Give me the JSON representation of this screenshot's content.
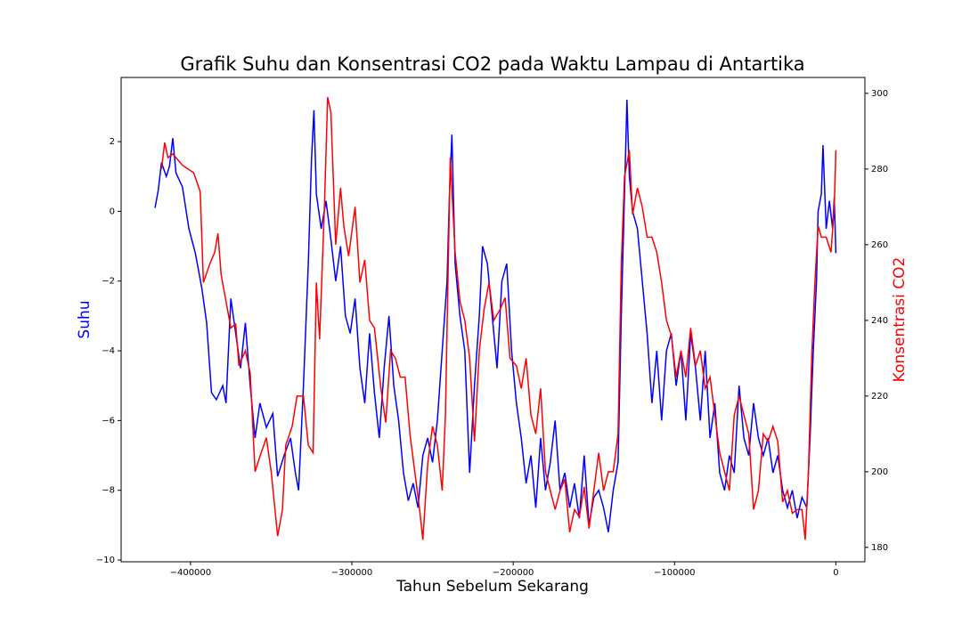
{
  "chart_data": {
    "type": "line",
    "title": "Grafik Suhu dan Konsentrasi CO2 pada Waktu Lampau di Antartika",
    "xlabel": "Tahun Sebelum Sekarang",
    "ylabel": "Suhu",
    "y2label": "Konsentrasi CO2",
    "xlim": [
      -443000,
      18000
    ],
    "ylim": [
      -10.05,
      3.84
    ],
    "y2lim": [
      176.2,
      304.2
    ],
    "xticks": [
      {
        "value": -400000,
        "label": "−400000"
      },
      {
        "value": -300000,
        "label": "−300000"
      },
      {
        "value": -200000,
        "label": "−200000"
      },
      {
        "value": -100000,
        "label": "−100000"
      },
      0
    ],
    "yticks": [
      {
        "value": -10,
        "label": "−10"
      },
      {
        "value": -8,
        "label": "−8"
      },
      {
        "value": -6,
        "label": "−6"
      },
      {
        "value": -4,
        "label": "−4"
      },
      {
        "value": -2,
        "label": "−2"
      },
      0,
      2
    ],
    "y2ticks": [
      180,
      200,
      220,
      240,
      260,
      280,
      300
    ],
    "grid": false,
    "series": [
      {
        "color": "#0000ff",
        "axis": "y",
        "x": [
          -422000,
          -420000,
          -418000,
          -415000,
          -413000,
          -411000,
          -409000,
          -405000,
          -401000,
          -397000,
          -393000,
          -390000,
          -387000,
          -384000,
          -380000,
          -378000,
          -375000,
          -372000,
          -369000,
          -366000,
          -363000,
          -360000,
          -357000,
          -353000,
          -349000,
          -346000,
          -342000,
          -338000,
          -335000,
          -333000,
          -330000,
          -327000,
          -325000,
          -323500,
          -322000,
          -319000,
          -316000,
          -313000,
          -310000,
          -307000,
          -304000,
          -301000,
          -298000,
          -295000,
          -292000,
          -289000,
          -286000,
          -283000,
          -280000,
          -277000,
          -274000,
          -271000,
          -268000,
          -265000,
          -262000,
          -259000,
          -256000,
          -253000,
          -250000,
          -247000,
          -244000,
          -241000,
          -239500,
          -238000,
          -236000,
          -233000,
          -230000,
          -227000,
          -224000,
          -221000,
          -219000,
          -216000,
          -213000,
          -210000,
          -207000,
          -204000,
          -201000,
          -198000,
          -195000,
          -192000,
          -189000,
          -186000,
          -183000,
          -180000,
          -177000,
          -174000,
          -171000,
          -168000,
          -165000,
          -162000,
          -159000,
          -156000,
          -153000,
          -150000,
          -147000,
          -144000,
          -141000,
          -138000,
          -135000,
          -133000,
          -131000,
          -129500,
          -128000,
          -126000,
          -123000,
          -120000,
          -117000,
          -114000,
          -111000,
          -108000,
          -105000,
          -102000,
          -99000,
          -96000,
          -93000,
          -90000,
          -87000,
          -84000,
          -81000,
          -78000,
          -75000,
          -72000,
          -69000,
          -66000,
          -63000,
          -60000,
          -57000,
          -54000,
          -51000,
          -48000,
          -45000,
          -42000,
          -39000,
          -36000,
          -33000,
          -30000,
          -27000,
          -24000,
          -21000,
          -18000,
          -16000,
          -14000,
          -12000,
          -11000,
          -9000,
          -8000,
          -6000,
          -4000,
          -2000,
          -1000,
          0
        ],
        "values": [
          0.1,
          0.6,
          1.4,
          1.0,
          1.3,
          2.1,
          1.1,
          0.7,
          -0.5,
          -1.2,
          -2.2,
          -3.2,
          -5.2,
          -5.4,
          -5.0,
          -5.5,
          -2.5,
          -3.5,
          -4.5,
          -3.2,
          -5.0,
          -6.5,
          -5.5,
          -6.2,
          -5.8,
          -7.6,
          -7.0,
          -6.5,
          -7.5,
          -8.0,
          -5.0,
          -1.5,
          1.5,
          2.9,
          0.5,
          -0.5,
          0.3,
          -0.8,
          -2.0,
          -1.0,
          -3.0,
          -3.5,
          -2.5,
          -4.5,
          -5.5,
          -3.5,
          -5.2,
          -6.5,
          -4.5,
          -3.0,
          -5.0,
          -6.0,
          -7.5,
          -8.3,
          -7.8,
          -8.5,
          -7.0,
          -6.5,
          -7.2,
          -6.0,
          -4.0,
          -2.0,
          0.5,
          2.2,
          -1.5,
          -3.0,
          -4.0,
          -7.5,
          -5.0,
          -3.0,
          -1.0,
          -1.5,
          -3.0,
          -4.5,
          -2.0,
          -1.5,
          -4.0,
          -5.5,
          -6.5,
          -7.8,
          -7.0,
          -8.5,
          -6.5,
          -8.0,
          -7.2,
          -6.0,
          -8.0,
          -7.5,
          -8.5,
          -7.8,
          -8.8,
          -7.0,
          -9.0,
          -8.2,
          -8.0,
          -8.5,
          -9.2,
          -8.0,
          -7.2,
          -3.0,
          0.5,
          3.2,
          1.0,
          0.0,
          -0.5,
          -2.0,
          -3.5,
          -5.5,
          -4.0,
          -6.0,
          -4.0,
          -3.5,
          -5.0,
          -4.0,
          -6.0,
          -3.5,
          -4.5,
          -6.0,
          -4.0,
          -6.5,
          -5.5,
          -7.5,
          -8.0,
          -7.0,
          -7.5,
          -5.0,
          -6.5,
          -7.0,
          -5.5,
          -6.5,
          -7.0,
          -6.5,
          -7.5,
          -7.0,
          -8.0,
          -8.5,
          -8.0,
          -8.8,
          -8.2,
          -8.5,
          -6.5,
          -4.0,
          -2.0,
          0.0,
          0.5,
          1.9,
          -0.5,
          0.3,
          -0.5,
          0.4,
          -1.2
        ]
      },
      {
        "color": "#ff0000",
        "axis": "y2",
        "x": [
          -418000,
          -416000,
          -414000,
          -411000,
          -405000,
          -398000,
          -394000,
          -392000,
          -388000,
          -385000,
          -383000,
          -381000,
          -378000,
          -375000,
          -372000,
          -370000,
          -366000,
          -363000,
          -360000,
          -357000,
          -353000,
          -350000,
          -346000,
          -343000,
          -341000,
          -337000,
          -334000,
          -330000,
          -327000,
          -324000,
          -322000,
          -320000,
          -317000,
          -315000,
          -313000,
          -310000,
          -307000,
          -305000,
          -302000,
          -298000,
          -295000,
          -292000,
          -289000,
          -286000,
          -282000,
          -279000,
          -276000,
          -273000,
          -270000,
          -267000,
          -264000,
          -261000,
          -258000,
          -256000,
          -253000,
          -250000,
          -247000,
          -244000,
          -242000,
          -239000,
          -236000,
          -233000,
          -230000,
          -227000,
          -224000,
          -221000,
          -218000,
          -215000,
          -212000,
          -208000,
          -205000,
          -202000,
          -198000,
          -195000,
          -192000,
          -189000,
          -186000,
          -183000,
          -180000,
          -177000,
          -174000,
          -171000,
          -168000,
          -165000,
          -162000,
          -159000,
          -156000,
          -153000,
          -150000,
          -147000,
          -144000,
          -141000,
          -138000,
          -135000,
          -133000,
          -131000,
          -128000,
          -126000,
          -123000,
          -120000,
          -117000,
          -114000,
          -111000,
          -108000,
          -105000,
          -102000,
          -99000,
          -96000,
          -93000,
          -90000,
          -87000,
          -84000,
          -81000,
          -78000,
          -75000,
          -72000,
          -69000,
          -66000,
          -63000,
          -60000,
          -57000,
          -54000,
          -51000,
          -48000,
          -45000,
          -42000,
          -39000,
          -36000,
          -33000,
          -30000,
          -27000,
          -24000,
          -21000,
          -19000,
          -17000,
          -15000,
          -13000,
          -11000,
          -9000,
          -6000,
          -3000,
          -1000,
          0
        ],
        "values": [
          280,
          287,
          283,
          284,
          281,
          279,
          274,
          250,
          255,
          258,
          263,
          252,
          245,
          238,
          239,
          228,
          232,
          226,
          200,
          204,
          209,
          200,
          183,
          190,
          207,
          212,
          220,
          220,
          207,
          205,
          250,
          235,
          270,
          299,
          295,
          260,
          275,
          265,
          257,
          270,
          250,
          256,
          240,
          238,
          222,
          213,
          232,
          230,
          225,
          225,
          210,
          200,
          190,
          182,
          202,
          212,
          207,
          195,
          215,
          283,
          258,
          245,
          240,
          230,
          208,
          232,
          243,
          250,
          240,
          243,
          246,
          230,
          228,
          222,
          230,
          215,
          210,
          222,
          200,
          195,
          190,
          195,
          198,
          184,
          190,
          188,
          196,
          185,
          195,
          205,
          195,
          200,
          200,
          210,
          255,
          278,
          285,
          268,
          275,
          270,
          262,
          262,
          258,
          250,
          240,
          236,
          225,
          232,
          225,
          238,
          228,
          232,
          222,
          225,
          215,
          205,
          200,
          195,
          215,
          220,
          215,
          210,
          190,
          195,
          210,
          208,
          212,
          208,
          192,
          195,
          189,
          190,
          190,
          182,
          200,
          230,
          250,
          265,
          262,
          262,
          258,
          270,
          285
        ]
      }
    ]
  }
}
